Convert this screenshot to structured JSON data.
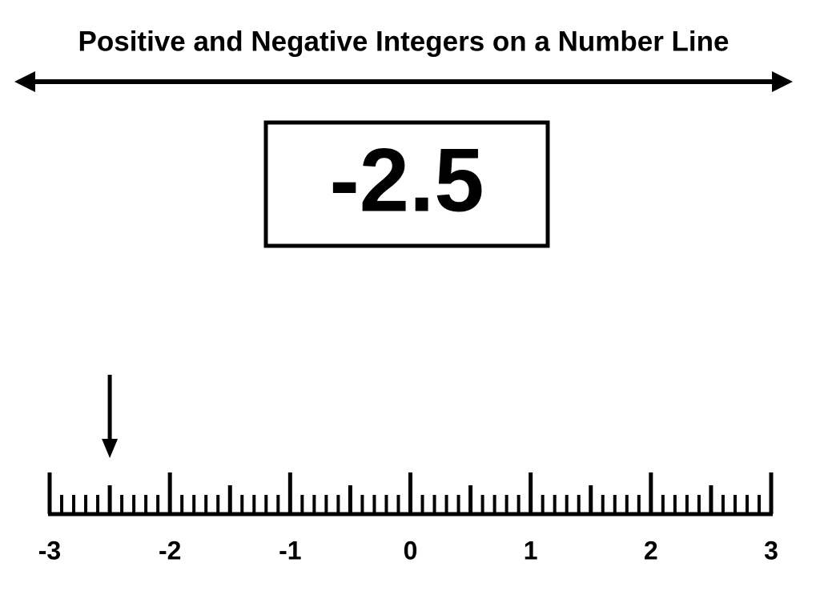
{
  "title": "Positive and Negative Integers on a Number Line",
  "marked_value": -2.5,
  "number_line": {
    "min": -3,
    "max": 3,
    "labels": [
      -3,
      -2,
      -1,
      0,
      1,
      2,
      3
    ]
  }
}
